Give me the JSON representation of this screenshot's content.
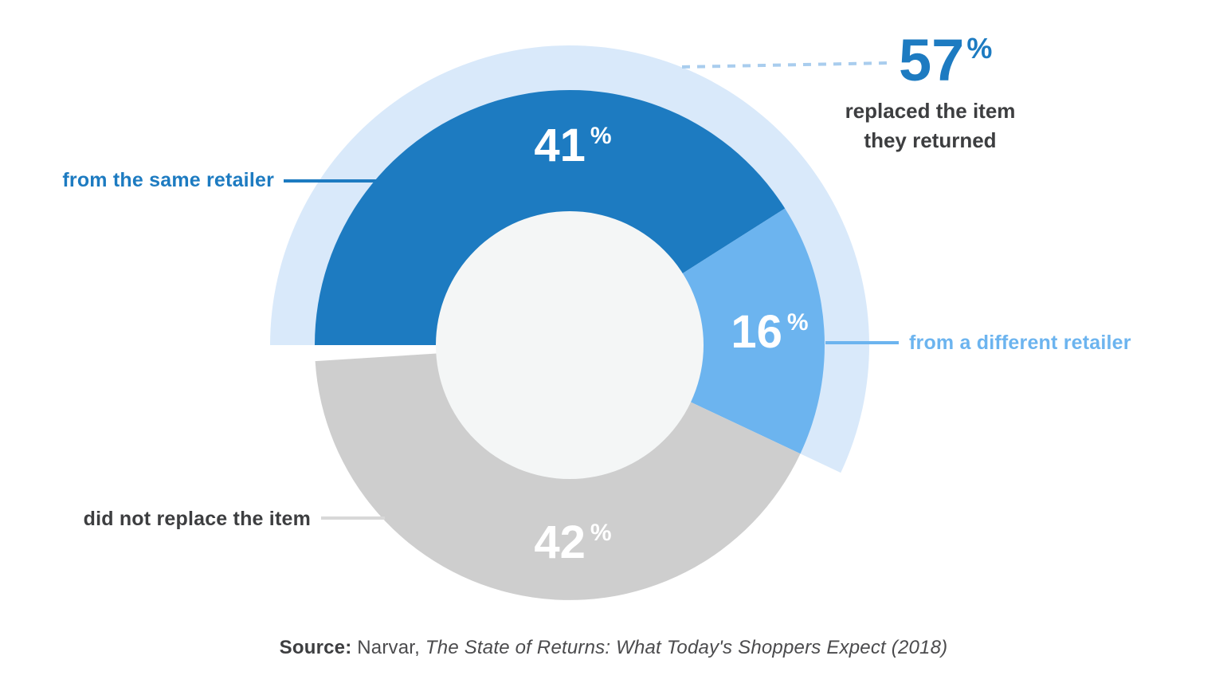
{
  "chart_data": {
    "type": "pie",
    "subtype": "donut",
    "units": "%",
    "start_angle_deg": 180,
    "direction": "clockwise",
    "hole_color": "#f4f6f6",
    "segments": [
      {
        "label": "from the same retailer",
        "value": 41,
        "display": "41",
        "suffix": "%",
        "color": "#1d7bc1"
      },
      {
        "label": "from a different retailer",
        "value": 16,
        "display": "16",
        "suffix": "%",
        "color": "#6cb4ef"
      },
      {
        "label": "did not replace the item",
        "value": 42,
        "display": "42",
        "suffix": "%",
        "color": "#cecece"
      }
    ],
    "outer_arc": {
      "label": "replaced the item they returned",
      "label_line1": "replaced the item",
      "label_line2": "they returned",
      "value": 57,
      "display": "57",
      "suffix": "%",
      "color": "#d9e9fa"
    },
    "source": "Source: Narvar, The State of Returns: What Today's Shoppers Expect (2018)"
  },
  "source": {
    "prefix": "Source:",
    "publisher": " Narvar, ",
    "title": "The State of Returns: What Today's Shoppers Expect (2018)"
  },
  "colors": {
    "accent_blue": "#1d7bc1",
    "light_blue": "#6cb4ef",
    "pale_blue": "#d9e9fa",
    "gray": "#cecece",
    "hole": "#f4f6f6",
    "text_dark": "#3d3e40",
    "text_source": "#4b4b4d",
    "dashed_leader": "#a9cdee",
    "leader_gray": "#d8d8d8",
    "background": "#ffffff"
  }
}
